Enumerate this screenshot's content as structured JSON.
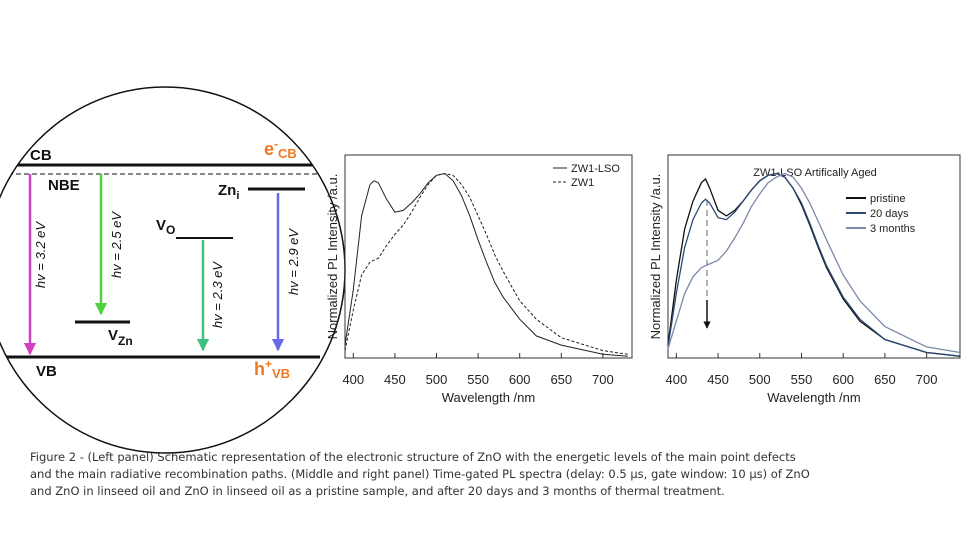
{
  "diagram": {
    "cb": "CB",
    "ecb": {
      "main": "e",
      "sup": "-",
      "sub": "CB"
    },
    "nbe": "NBE",
    "zni": {
      "main": "Zn",
      "sub": "i"
    },
    "vo": {
      "main": "V",
      "sub": "O"
    },
    "vzn": {
      "main": "V",
      "sub": "Zn"
    },
    "vb": "VB",
    "hvb": {
      "main": "h",
      "sup": "+",
      "sub": "VB"
    },
    "transitions": [
      "hv = 3.2 eV",
      "hv = 2.5 eV",
      "hv = 2.3 eV",
      "hv = 2.9 eV"
    ]
  },
  "chart_data": [
    {
      "type": "line",
      "xlabel": "Wavelength /nm",
      "ylabel": "Normalized PL Intensity /a.u.",
      "xlim": [
        390,
        735
      ],
      "ylim": [
        0,
        1.1
      ],
      "xticks": [
        400,
        450,
        500,
        550,
        600,
        650,
        700
      ],
      "grid": false,
      "legend": "upper right",
      "x": [
        390,
        400,
        410,
        420,
        425,
        430,
        440,
        450,
        460,
        470,
        480,
        490,
        500,
        510,
        520,
        530,
        540,
        550,
        560,
        570,
        580,
        600,
        620,
        650,
        700,
        730
      ],
      "series": [
        {
          "name": "ZW1-LSO",
          "color": "#222222",
          "style": "solid",
          "values": [
            0.07,
            0.37,
            0.77,
            0.94,
            0.96,
            0.95,
            0.86,
            0.79,
            0.8,
            0.84,
            0.89,
            0.95,
            0.99,
            1.0,
            0.96,
            0.88,
            0.77,
            0.64,
            0.52,
            0.41,
            0.33,
            0.21,
            0.12,
            0.07,
            0.02,
            0.01
          ]
        },
        {
          "name": "ZW1",
          "color": "#222222",
          "style": "dashed",
          "values": [
            0.04,
            0.26,
            0.45,
            0.52,
            0.53,
            0.54,
            0.61,
            0.67,
            0.72,
            0.79,
            0.87,
            0.94,
            0.99,
            1.0,
            0.99,
            0.94,
            0.87,
            0.77,
            0.67,
            0.56,
            0.47,
            0.31,
            0.21,
            0.11,
            0.04,
            0.02
          ]
        }
      ]
    },
    {
      "type": "line",
      "title": "ZW1-LSO Artifically Aged",
      "xlabel": "Wavelength /nm",
      "ylabel": "Normalized PL Intensity /a.u.",
      "xlim": [
        390,
        740
      ],
      "ylim": [
        0,
        1.1
      ],
      "xticks": [
        400,
        450,
        500,
        550,
        600,
        650,
        700
      ],
      "grid": false,
      "legend": "upper right",
      "x": [
        390,
        400,
        410,
        420,
        430,
        435,
        440,
        450,
        460,
        470,
        480,
        490,
        500,
        510,
        520,
        530,
        540,
        550,
        560,
        570,
        580,
        600,
        620,
        650,
        700,
        740
      ],
      "series": [
        {
          "name": "pristine",
          "color": "#111111",
          "style": "solid",
          "values": [
            0.07,
            0.42,
            0.7,
            0.85,
            0.95,
            0.97,
            0.92,
            0.8,
            0.77,
            0.8,
            0.85,
            0.91,
            0.96,
            0.99,
            1.0,
            0.98,
            0.92,
            0.83,
            0.72,
            0.6,
            0.49,
            0.32,
            0.2,
            0.1,
            0.03,
            0.01
          ]
        },
        {
          "name": "20 days",
          "color": "#2b4a78",
          "style": "solid",
          "values": [
            0.06,
            0.35,
            0.6,
            0.75,
            0.84,
            0.86,
            0.84,
            0.76,
            0.75,
            0.79,
            0.85,
            0.91,
            0.96,
            0.99,
            1.0,
            0.98,
            0.92,
            0.84,
            0.73,
            0.61,
            0.5,
            0.33,
            0.21,
            0.1,
            0.03,
            0.01
          ]
        },
        {
          "name": "3 months",
          "color": "#7a8aa8",
          "style": "solid",
          "values": [
            0.05,
            0.2,
            0.35,
            0.44,
            0.49,
            0.5,
            0.51,
            0.53,
            0.58,
            0.65,
            0.73,
            0.82,
            0.89,
            0.95,
            0.98,
            1.0,
            0.98,
            0.92,
            0.84,
            0.74,
            0.64,
            0.45,
            0.31,
            0.17,
            0.06,
            0.03
          ]
        }
      ]
    }
  ],
  "caption": [
    "Figure 2 - (Left panel) Schematic representation of the electronic structure of ZnO with the energetic levels of the main point defects",
    "and the main radiative recombination paths. (Middle and right panel) Time-gated PL spectra (delay: 0.5 μs, gate window: 10 μs) of ZnO",
    "and ZnO in linseed oil and ZnO in linseed oil as a pristine sample, and after 20 days and 3 months of thermal treatment."
  ]
}
